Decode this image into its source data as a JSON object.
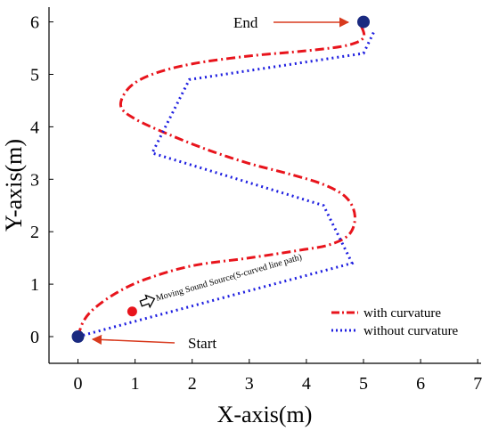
{
  "chart_data": {
    "type": "line",
    "title": "",
    "xlabel": "X-axis(m)",
    "ylabel": "Y-axis(m)",
    "xlim": [
      -0.5,
      7
    ],
    "ylim": [
      -0.5,
      6.2
    ],
    "xticks": [
      0,
      1,
      2,
      3,
      4,
      5,
      6,
      7
    ],
    "yticks": [
      0,
      1,
      2,
      3,
      4,
      5,
      6
    ],
    "grid": false,
    "legend_position": "bottom-right",
    "series": [
      {
        "name": "with curvature",
        "color": "#e8141c",
        "style": "dash-dot",
        "x": [
          0,
          0.1,
          0.3,
          0.7,
          1.2,
          2.0,
          3.0,
          3.9,
          4.4,
          4.75,
          4.85,
          4.7,
          4.3,
          3.7,
          3.0,
          2.3,
          1.6,
          1.0,
          0.75,
          0.9,
          1.3,
          2.0,
          3.0,
          4.0,
          4.7,
          5.0,
          4.95
        ],
        "y": [
          0,
          0.3,
          0.55,
          0.85,
          1.1,
          1.35,
          1.5,
          1.65,
          1.75,
          1.95,
          2.3,
          2.65,
          2.9,
          3.1,
          3.3,
          3.55,
          3.85,
          4.15,
          4.4,
          4.75,
          5.0,
          5.2,
          5.35,
          5.45,
          5.55,
          5.7,
          5.95
        ]
      },
      {
        "name": "without curvature",
        "color": "#1f1fe0",
        "style": "dotted",
        "x": [
          0,
          4.8,
          4.3,
          1.3,
          1.95,
          5.0,
          5.2
        ],
        "y": [
          0,
          1.4,
          2.5,
          3.5,
          4.9,
          5.4,
          5.85
        ]
      }
    ],
    "points": [
      {
        "name": "start-point",
        "x": 0,
        "y": 0,
        "color": "#1a2a80"
      },
      {
        "name": "end-point",
        "x": 5,
        "y": 6,
        "color": "#1a2a80"
      },
      {
        "name": "sound-source-point",
        "x": 0.95,
        "y": 0.48,
        "color": "#e8141c"
      }
    ],
    "annotations": {
      "end_label": "End",
      "start_label": "Start",
      "source_label": "Moving Sound Source(S-curved line path)"
    }
  }
}
